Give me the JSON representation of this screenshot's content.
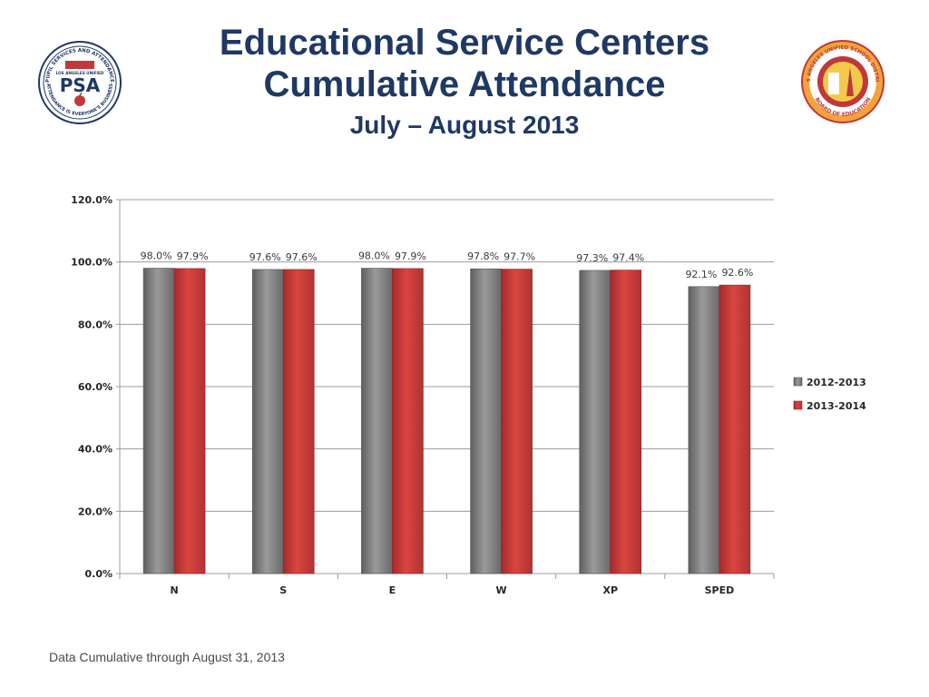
{
  "slide": {
    "title_line1": "Educational Service Centers",
    "title_line2": "Cumulative Attendance",
    "subtitle": "July – August 2013",
    "footer": "Data Cumulative through August 31, 2013"
  },
  "logos": {
    "left": {
      "top_text": "PUPIL SERVICES AND ATTENDANCE",
      "mid_text": "LOS ANGELES UNIFIED",
      "main": "PSA",
      "bottom_text": "ATTENDANCE IS EVERYONE'S BUSINESS"
    },
    "right": {
      "top_text": "LOS ANGELES UNIFIED SCHOOL DISTRICT",
      "bottom_text": "BOARD OF EDUCATION"
    }
  },
  "colors": {
    "title": "#1f3864",
    "series1": "#7f7f7f",
    "series2": "#c0383a"
  },
  "chart_data": {
    "type": "bar",
    "categories": [
      "N",
      "S",
      "E",
      "W",
      "XP",
      "SPED"
    ],
    "series": [
      {
        "name": "2012-2013",
        "values": [
          98.0,
          97.6,
          98.0,
          97.8,
          97.3,
          92.1
        ],
        "labels": [
          "98.0%",
          "97.6%",
          "98.0%",
          "97.8%",
          "97.3%",
          "92.1%"
        ]
      },
      {
        "name": "2013-2014",
        "values": [
          97.9,
          97.6,
          97.9,
          97.7,
          97.4,
          92.6
        ],
        "labels": [
          "97.9%",
          "97.6%",
          "97.9%",
          "97.7%",
          "97.4%",
          "92.6%"
        ]
      }
    ],
    "ylim": [
      0,
      120
    ],
    "yticks": [
      0,
      20,
      40,
      60,
      80,
      100,
      120
    ],
    "ytick_labels": [
      "0.0%",
      "20.0%",
      "40.0%",
      "60.0%",
      "80.0%",
      "100.0%",
      "120.0%"
    ],
    "grid": true,
    "legend_position": "right"
  }
}
